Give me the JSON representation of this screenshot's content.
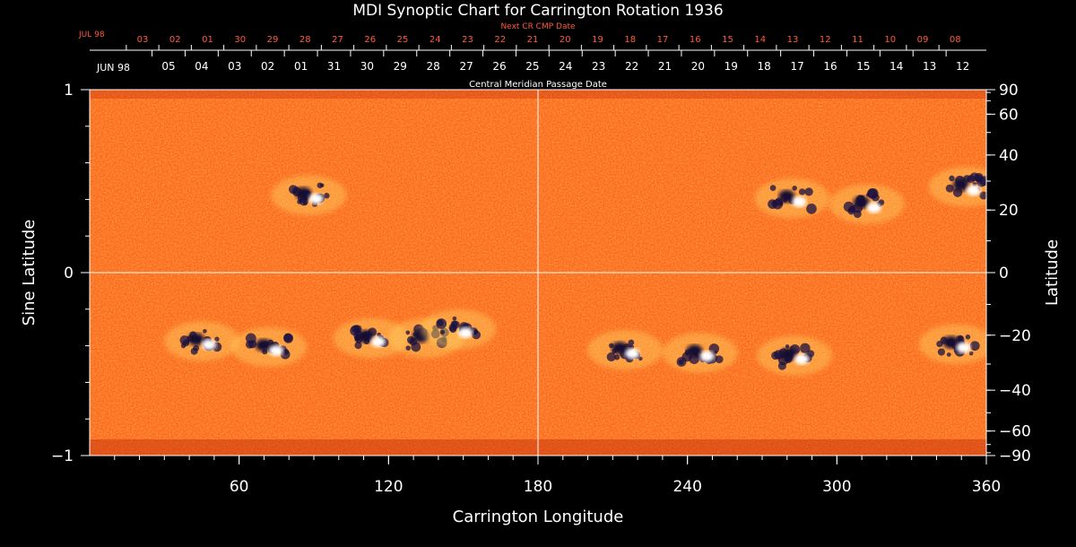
{
  "title": "MDI Synoptic Chart for Carrington Rotation 1936",
  "top_scale": {
    "label": "Next CR CMP Date",
    "month_label": "JUL 98",
    "dates": [
      "03",
      "02",
      "01",
      "30",
      "29",
      "28",
      "27",
      "26",
      "25",
      "24",
      "23",
      "22",
      "21",
      "20",
      "19",
      "18",
      "17",
      "16",
      "15",
      "14",
      "13",
      "12",
      "11",
      "10",
      "09",
      "08"
    ]
  },
  "mid_scale": {
    "label": "Central Meridian Passage Date",
    "month_label": "JUN 98",
    "dates": [
      "05",
      "04",
      "03",
      "02",
      "01",
      "31",
      "30",
      "29",
      "28",
      "27",
      "26",
      "25",
      "24",
      "23",
      "22",
      "21",
      "20",
      "19",
      "18",
      "17",
      "16",
      "15",
      "14",
      "13",
      "12"
    ]
  },
  "colors": {
    "background": "#000000",
    "map_base": "#ff6a1a",
    "positive_flux": "#ffffff",
    "negative_flux": "#1a1040",
    "accent_text": "#ff5a3a"
  },
  "chart_data": {
    "type": "heatmap",
    "title": "MDI Synoptic Chart for Carrington Rotation 1936",
    "xlabel": "Carrington Longitude",
    "ylabel_left": "Sine Latitude",
    "ylabel_right": "Latitude",
    "xlim": [
      0,
      360
    ],
    "ylim_left": [
      -1,
      1
    ],
    "x_ticks": [
      60,
      120,
      180,
      240,
      300,
      360
    ],
    "y_ticks_left": [
      -1,
      0,
      1
    ],
    "y_ticks_right": [
      90,
      60,
      40,
      20,
      0,
      -20,
      -40,
      -60,
      -90
    ],
    "grid_lines": {
      "longitude": 180,
      "sine_latitude": 0
    },
    "active_regions": [
      {
        "longitude": 88,
        "latitude": 25,
        "polarity": "mixed"
      },
      {
        "longitude": 45,
        "latitude": -22,
        "polarity": "mixed"
      },
      {
        "longitude": 72,
        "latitude": -24,
        "polarity": "mixed"
      },
      {
        "longitude": 113,
        "latitude": -21,
        "polarity": "mixed"
      },
      {
        "longitude": 135,
        "latitude": -21,
        "polarity": "negative"
      },
      {
        "longitude": 148,
        "latitude": -18,
        "polarity": "positive"
      },
      {
        "longitude": 282,
        "latitude": 24,
        "polarity": "mixed"
      },
      {
        "longitude": 312,
        "latitude": 22,
        "polarity": "mixed"
      },
      {
        "longitude": 352,
        "latitude": 28,
        "polarity": "mixed"
      },
      {
        "longitude": 245,
        "latitude": -26,
        "polarity": "mixed"
      },
      {
        "longitude": 283,
        "latitude": -27,
        "polarity": "mixed"
      },
      {
        "longitude": 348,
        "latitude": -23,
        "polarity": "mixed"
      },
      {
        "longitude": 215,
        "latitude": -25,
        "polarity": "mixed"
      }
    ]
  }
}
